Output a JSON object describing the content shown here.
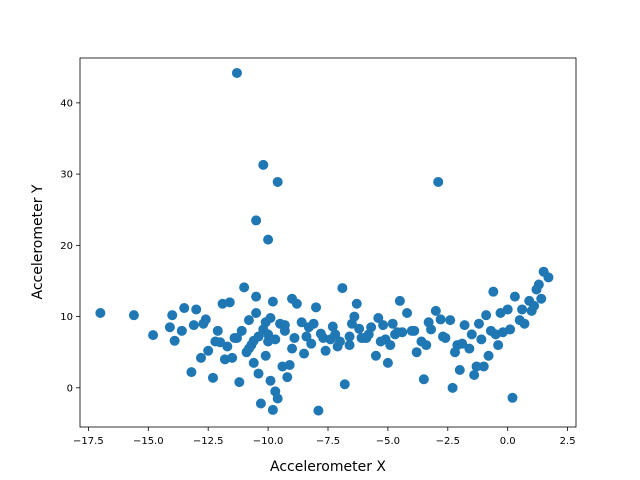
{
  "chart_data": {
    "type": "scatter",
    "title": "",
    "xlabel": "Accelerometer X",
    "ylabel": "Accelerometer Y",
    "xlim": [
      -17.85,
      2.85
    ],
    "ylim": [
      -5.5,
      46.3
    ],
    "xticks": [
      -17.5,
      -15.0,
      -12.5,
      -10.0,
      -7.5,
      -5.0,
      -2.5,
      0.0,
      2.5
    ],
    "xtick_labels": [
      "−17.5",
      "−15.0",
      "−12.5",
      "−10.0",
      "−7.5",
      "−5.0",
      "−2.5",
      "0.0",
      "2.5"
    ],
    "yticks": [
      0,
      10,
      20,
      30,
      40
    ],
    "ytick_labels": [
      "0",
      "10",
      "20",
      "30",
      "40"
    ],
    "grid": false,
    "marker_color": "#1f77b4",
    "series": [
      {
        "x": [
          -11.3,
          -10.2,
          -9.6,
          -2.9,
          -10.5,
          -10.0,
          -17.0,
          -15.6,
          -14.8,
          -14.1,
          -13.9,
          -14.0,
          -13.1,
          -12.7,
          -12.5,
          -12.3,
          -13.2,
          -13.5,
          -12.1,
          -11.9,
          -11.6,
          -11.3,
          -11.0,
          -10.8,
          -10.5,
          -10.2,
          -10.0,
          -9.8,
          -9.5,
          -9.3,
          -9.0,
          -8.8,
          -8.6,
          -8.3,
          -8.0,
          -7.7,
          -7.4,
          -7.2,
          -6.9,
          -6.6,
          -6.3,
          -6.0,
          -5.7,
          -5.4,
          -5.1,
          -4.8,
          -4.5,
          -4.2,
          -3.9,
          -3.6,
          -3.3,
          -3.0,
          -2.7,
          -2.4,
          -2.1,
          -1.8,
          -1.5,
          -1.2,
          -0.9,
          -0.6,
          -0.3,
          0.0,
          0.3,
          0.6,
          0.9,
          1.2,
          1.5,
          1.7,
          -10.9,
          -10.6,
          -10.4,
          -10.1,
          -9.9,
          -9.7,
          -9.4,
          -9.2,
          -10.3,
          -9.8,
          -9.6,
          -10.7,
          -11.2,
          -11.8,
          -12.2,
          -12.8,
          -13.6,
          -13.0,
          -7.9,
          -6.8,
          -5.0,
          -3.5,
          -2.3,
          -2.0,
          -1.4,
          -0.8,
          0.2,
          -0.4,
          -1.0,
          -3.8,
          -5.5,
          -6.6,
          -7.6,
          -8.5,
          -9.1,
          -10.0,
          -10.8,
          -11.5,
          -2.6,
          -1.9,
          -0.7,
          0.5,
          1.0,
          1.3,
          -3.2,
          -4.4,
          -5.8,
          -6.2,
          -7.0,
          -8.1,
          -8.9,
          -9.7,
          -10.4,
          -11.1,
          -11.7,
          -12.0,
          -12.6,
          -4.0,
          -4.7,
          -5.2,
          -5.9,
          -6.5,
          -7.3,
          -8.4,
          -9.3,
          -10.1,
          -10.6,
          -9.0,
          -8.2,
          -7.1,
          -6.1,
          -5.3,
          -4.6,
          -3.4,
          -2.2,
          -1.6,
          -1.1,
          -0.5,
          0.1,
          0.7,
          1.1,
          1.4,
          -1.3,
          -0.2,
          -2.8,
          -4.9,
          -6.4,
          -7.8,
          -9.9,
          -10.5,
          -11.4
        ],
        "y": [
          44.2,
          31.3,
          28.9,
          28.9,
          23.5,
          20.8,
          10.5,
          10.2,
          7.4,
          8.5,
          6.6,
          10.2,
          8.8,
          9.0,
          5.2,
          1.4,
          2.2,
          11.2,
          8.0,
          11.8,
          12.0,
          7.0,
          14.1,
          9.5,
          12.8,
          8.2,
          7.5,
          12.1,
          9.0,
          8.8,
          12.5,
          11.8,
          9.2,
          8.5,
          11.3,
          7.0,
          6.8,
          7.5,
          14.0,
          7.2,
          11.8,
          7.0,
          8.5,
          9.8,
          6.8,
          9.0,
          12.2,
          10.5,
          8.0,
          6.5,
          9.2,
          10.8,
          7.2,
          9.5,
          6.0,
          8.8,
          7.5,
          9.0,
          10.2,
          13.5,
          10.5,
          11.0,
          12.8,
          11.0,
          12.2,
          13.8,
          16.3,
          15.5,
          5.0,
          3.5,
          2.0,
          4.5,
          1.0,
          -0.5,
          3.0,
          1.5,
          -2.2,
          -3.1,
          -1.5,
          6.0,
          0.8,
          4.0,
          6.5,
          4.2,
          8.0,
          11.0,
          -3.2,
          0.5,
          3.5,
          1.2,
          0.0,
          2.5,
          1.8,
          4.5,
          -1.4,
          6.0,
          3.0,
          5.0,
          4.5,
          6.0,
          5.2,
          4.8,
          3.2,
          6.5,
          5.5,
          4.2,
          7.0,
          6.2,
          8.0,
          9.5,
          10.8,
          14.5,
          8.2,
          7.8,
          7.5,
          8.3,
          6.5,
          9.0,
          7.0,
          6.8,
          7.2,
          8.0,
          5.8,
          6.4,
          9.6,
          8.0,
          7.5,
          8.8,
          7.0,
          9.0,
          8.6,
          7.2,
          8.0,
          9.2,
          6.6,
          5.5,
          6.2,
          5.8,
          7.0,
          6.5,
          7.8,
          6.0,
          5.0,
          5.5,
          6.8,
          7.5,
          8.2,
          9.0,
          11.5,
          12.5,
          3.0,
          7.8,
          9.6,
          6.0,
          10.0,
          7.6,
          9.8,
          10.5,
          7.0
        ]
      }
    ]
  }
}
